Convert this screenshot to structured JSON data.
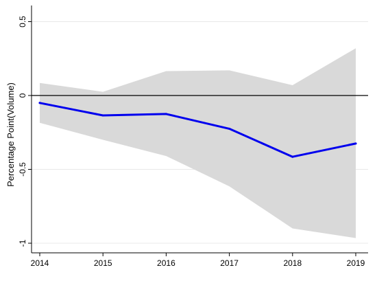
{
  "chart_data": {
    "type": "area",
    "title": "",
    "xlabel": "",
    "ylabel": "Percentage Point(Volume)",
    "x": [
      2014,
      2015,
      2016,
      2017,
      2018,
      2019
    ],
    "x_ticks": [
      "2014",
      "2015",
      "2016",
      "2017",
      "2018",
      "2019"
    ],
    "y_ticks": [
      0.5,
      0,
      -0.5,
      -1
    ],
    "y_tick_labels": [
      "0.5",
      "0",
      "-0.5",
      "-1"
    ],
    "xlim": [
      2014,
      2019
    ],
    "ylim": [
      -1.05,
      0.55
    ],
    "reference_line_y": 0,
    "grid": true,
    "legend": "none",
    "series": [
      {
        "kind": "estimate",
        "values": [
          -0.05,
          -0.135,
          -0.125,
          -0.225,
          -0.415,
          -0.325
        ],
        "color": "#0000ee"
      },
      {
        "kind": "confidence-band",
        "upper": [
          0.085,
          0.025,
          0.165,
          0.17,
          0.07,
          0.32
        ],
        "lower": [
          -0.185,
          -0.3,
          -0.41,
          -0.615,
          -0.9,
          -0.965
        ],
        "color": "#d9d9d9"
      }
    ],
    "reference_line_color": "#000000",
    "grid_color": "#e8e8e8"
  }
}
